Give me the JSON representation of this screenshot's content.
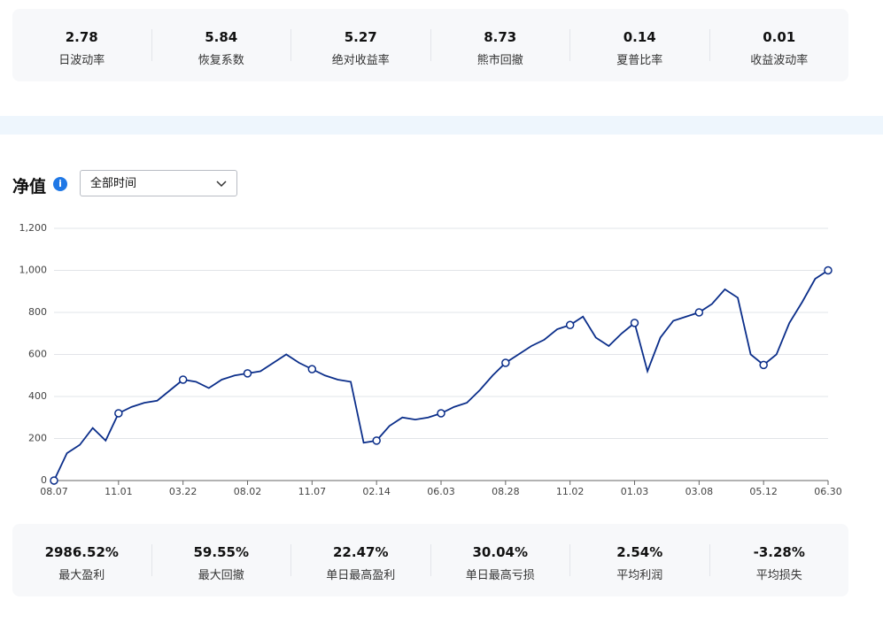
{
  "top_stats": [
    {
      "value": "2.78",
      "label": "日波动率"
    },
    {
      "value": "5.84",
      "label": "恢复系数"
    },
    {
      "value": "5.27",
      "label": "绝对收益率"
    },
    {
      "value": "8.73",
      "label": "熊市回撤"
    },
    {
      "value": "0.14",
      "label": "夏普比率"
    },
    {
      "value": "0.01",
      "label": "收益波动率"
    }
  ],
  "section": {
    "title": "净值",
    "dropdown": "全部时间"
  },
  "chart_data": {
    "type": "line",
    "color": "#0b2e8a",
    "grid": true,
    "markers": true,
    "ylim": [
      0,
      1200
    ],
    "yticks": [
      0,
      {
        "value": 200,
        "label": "200"
      },
      400,
      600,
      800,
      {
        "value": 1000,
        "label": "1,000"
      },
      {
        "value": 1200,
        "label": "1,200"
      }
    ],
    "categories": [
      "08.07",
      null,
      null,
      null,
      null,
      "11.01",
      null,
      null,
      null,
      null,
      "03.22",
      null,
      null,
      null,
      null,
      "08.02",
      null,
      null,
      null,
      null,
      "11.07",
      null,
      null,
      null,
      null,
      "02.14",
      null,
      null,
      null,
      null,
      "06.03",
      null,
      null,
      null,
      null,
      "08.28",
      null,
      null,
      null,
      null,
      "11.02",
      null,
      null,
      null,
      null,
      "01.03",
      null,
      null,
      null,
      null,
      "03.08",
      null,
      null,
      null,
      null,
      "05.12",
      null,
      null,
      null,
      null,
      "06.30"
    ],
    "values": [
      0,
      130,
      170,
      250,
      190,
      320,
      350,
      370,
      380,
      430,
      480,
      470,
      440,
      480,
      500,
      510,
      520,
      560,
      600,
      560,
      530,
      500,
      480,
      470,
      180,
      190,
      260,
      300,
      290,
      300,
      320,
      350,
      370,
      430,
      500,
      560,
      600,
      640,
      670,
      720,
      740,
      780,
      680,
      640,
      700,
      750,
      520,
      680,
      760,
      780,
      800,
      840,
      910,
      870,
      600,
      550,
      600,
      750,
      850,
      960,
      1000
    ]
  },
  "bottom_stats": [
    {
      "value": "2986.52%",
      "label": "最大盈利"
    },
    {
      "value": "59.55%",
      "label": "最大回撤"
    },
    {
      "value": "22.47%",
      "label": "单日最高盈利"
    },
    {
      "value": "30.04%",
      "label": "单日最高亏损"
    },
    {
      "value": "2.54%",
      "label": "平均利润"
    },
    {
      "value": "-3.28%",
      "label": "平均损失"
    }
  ]
}
